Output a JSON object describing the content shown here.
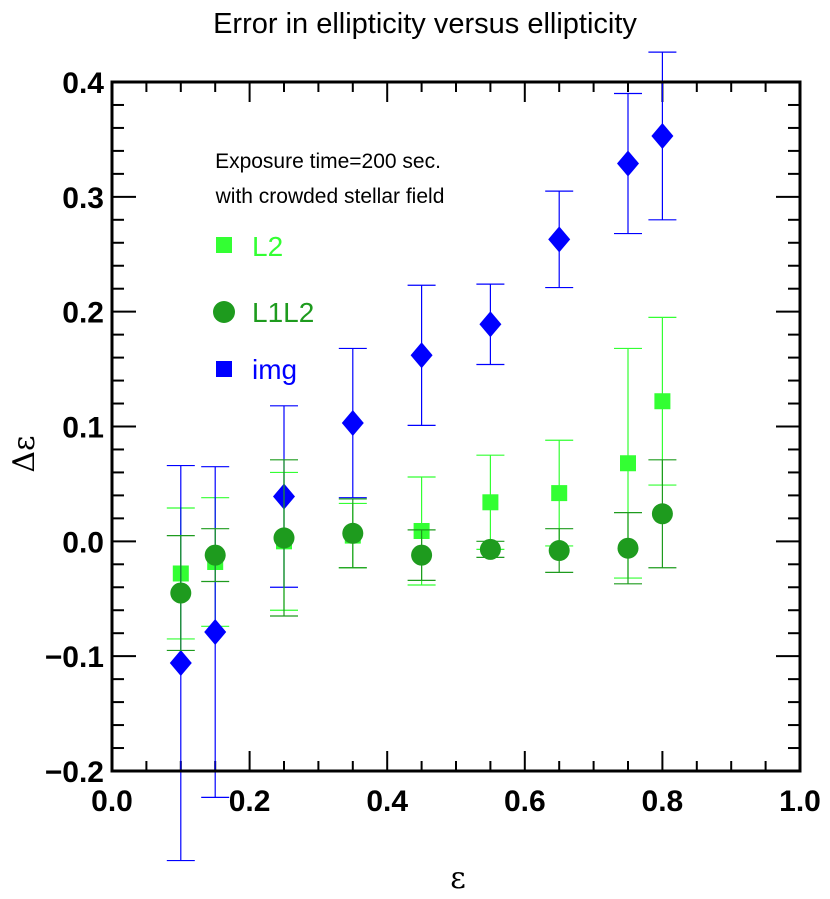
{
  "chart_data": {
    "type": "scatter",
    "title": "Error in ellipticity versus ellipticity",
    "xlabel": "ε",
    "ylabel": "Δε",
    "xlim": [
      0.0,
      1.0
    ],
    "ylim": [
      -0.2,
      0.4
    ],
    "xticks": [
      "0.0",
      "0.2",
      "0.4",
      "0.6",
      "0.8",
      "1.0"
    ],
    "yticks": [
      "−0.2",
      "−0.1",
      "0.0",
      "0.1",
      "0.2",
      "0.3",
      "0.4"
    ],
    "annotation": [
      "Exposure time=200 sec.",
      "with crowded stellar field"
    ],
    "legend_position": "upper-left",
    "series": [
      {
        "name": "L2",
        "marker": "square",
        "color": "#33ff33",
        "x": [
          0.1,
          0.15,
          0.25,
          0.35,
          0.45,
          0.55,
          0.65,
          0.75,
          0.8
        ],
        "y": [
          -0.028,
          -0.018,
          0.0,
          0.005,
          0.009,
          0.034,
          0.042,
          0.068,
          0.122
        ],
        "err": [
          0.057,
          0.056,
          0.06,
          0.028,
          0.047,
          0.041,
          0.046,
          0.1,
          0.073
        ]
      },
      {
        "name": "L1L2",
        "marker": "circle",
        "color": "#1e9b1e",
        "x": [
          0.1,
          0.15,
          0.25,
          0.35,
          0.45,
          0.55,
          0.65,
          0.75,
          0.8
        ],
        "y": [
          -0.045,
          -0.012,
          0.003,
          0.007,
          -0.012,
          -0.007,
          -0.008,
          -0.006,
          0.024
        ],
        "err": [
          0.05,
          0.023,
          0.068,
          0.03,
          0.022,
          0.007,
          0.019,
          0.031,
          0.047
        ]
      },
      {
        "name": "img",
        "marker": "diamond",
        "color": "#0000ff",
        "x": [
          0.1,
          0.15,
          0.25,
          0.35,
          0.45,
          0.55,
          0.65,
          0.75,
          0.8
        ],
        "y": [
          -0.106,
          -0.079,
          0.039,
          0.103,
          0.162,
          0.189,
          0.263,
          0.329,
          0.353
        ],
        "err": [
          0.172,
          0.144,
          0.079,
          0.065,
          0.061,
          0.035,
          0.042,
          0.061,
          0.073
        ]
      }
    ]
  }
}
